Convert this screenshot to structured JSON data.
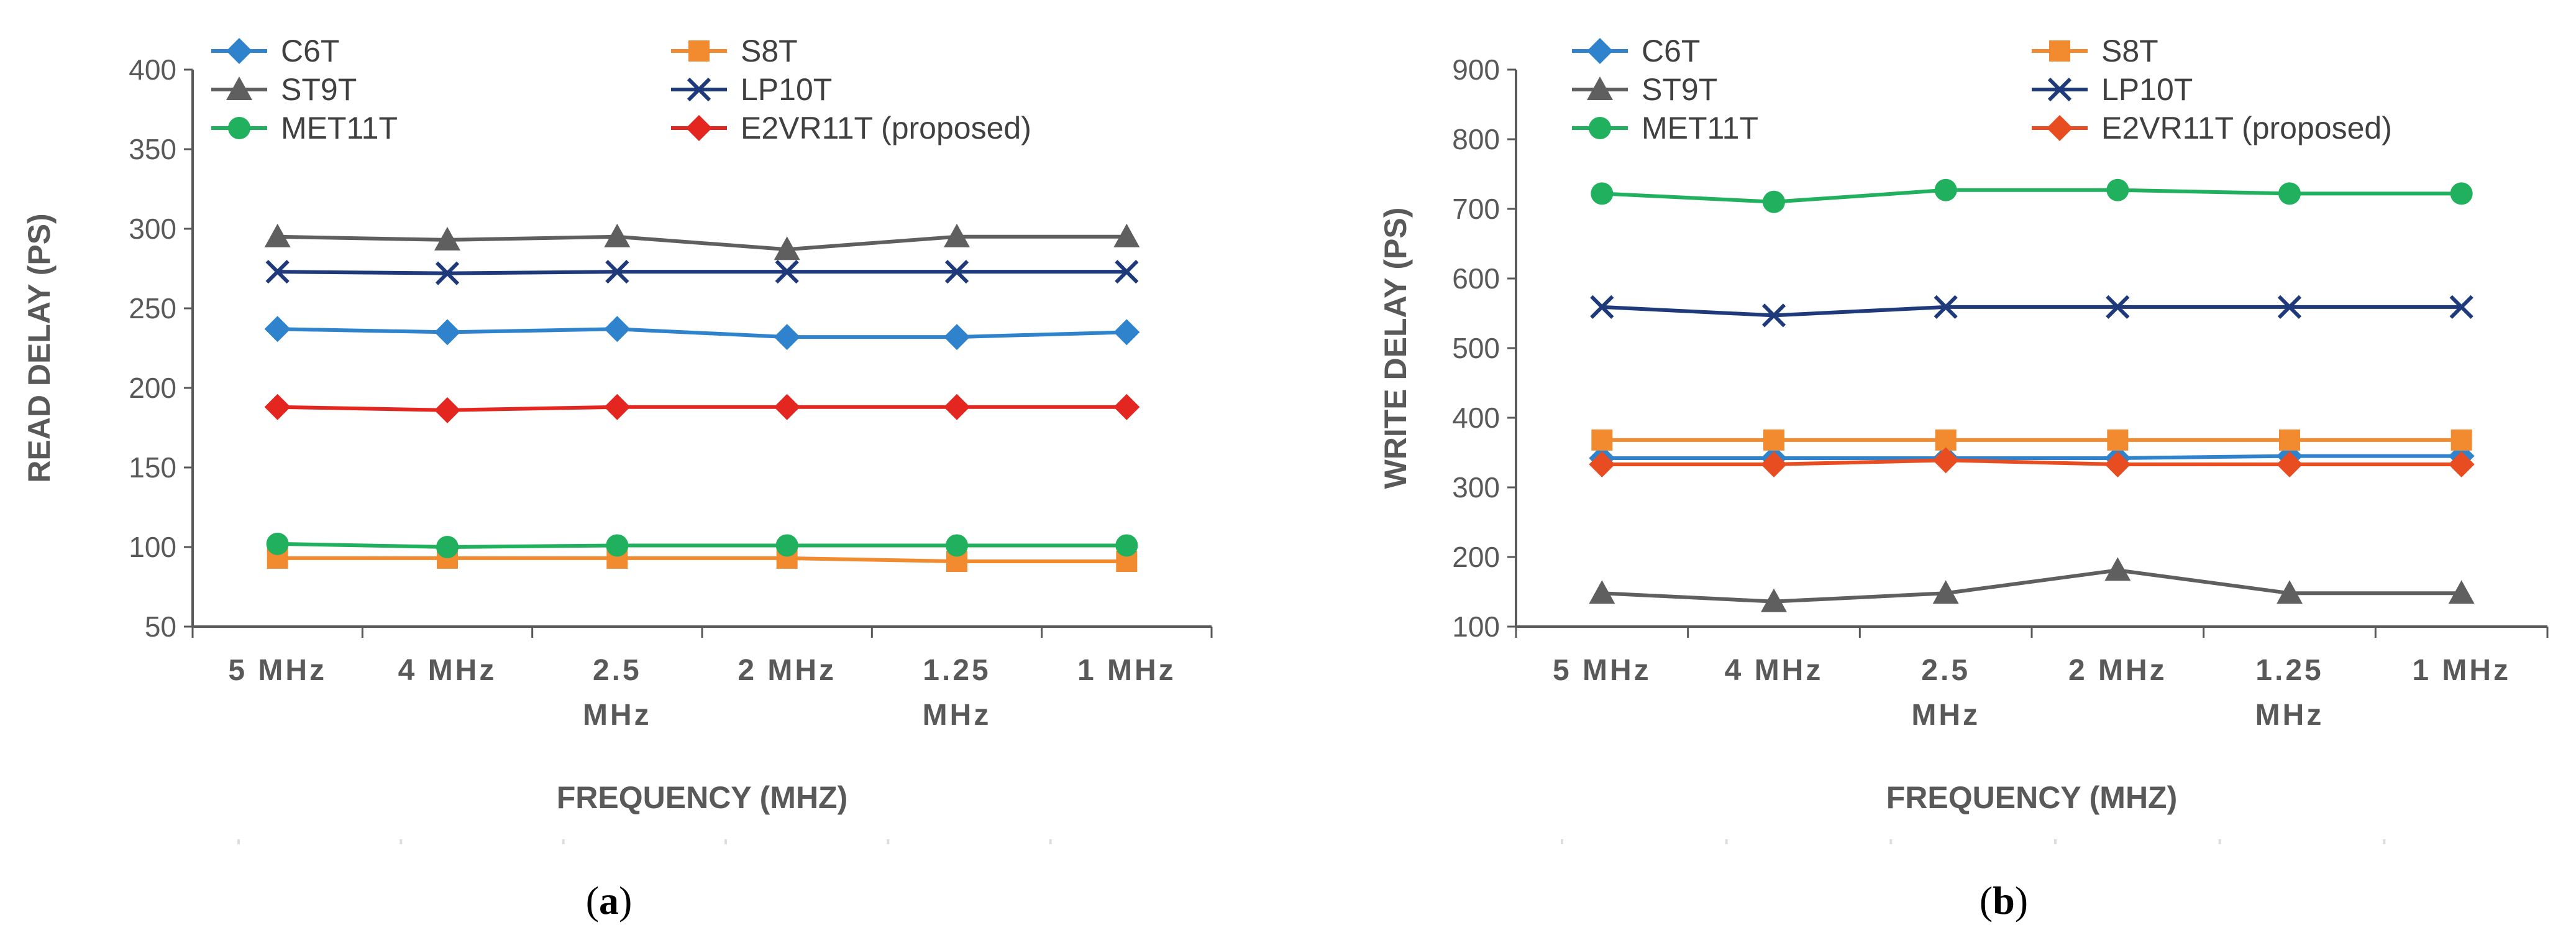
{
  "chart_data": [
    {
      "type": "line",
      "panel_label": "(a)",
      "ylabel": "READ DELAY (PS)",
      "xlabel": "FREQUENCY (MHZ)",
      "ylim": [
        50,
        400
      ],
      "yticks": [
        50,
        100,
        150,
        200,
        250,
        300,
        350,
        400
      ],
      "categories": [
        [
          "5 MHz"
        ],
        [
          "4 MHz"
        ],
        [
          "2.5",
          "MHz"
        ],
        [
          "2 MHz"
        ],
        [
          "1.25",
          "MHz"
        ],
        [
          "1 MHz"
        ]
      ],
      "legend_position": "top",
      "series": [
        {
          "name": "C6T",
          "color": "#2E83CC",
          "marker": "diamond",
          "values": [
            237,
            235,
            237,
            232,
            232,
            235
          ]
        },
        {
          "name": "S8T",
          "color": "#F28A30",
          "marker": "square",
          "values": [
            93,
            93,
            93,
            93,
            91,
            91
          ]
        },
        {
          "name": "ST9T",
          "color": "#5F5F5F",
          "marker": "triangle",
          "values": [
            295,
            293,
            295,
            287,
            295,
            295
          ]
        },
        {
          "name": "LP10T",
          "color": "#1F3A7A",
          "marker": "x",
          "values": [
            273,
            272,
            273,
            273,
            273,
            273
          ]
        },
        {
          "name": "MET11T",
          "color": "#21B05E",
          "marker": "circle",
          "values": [
            102,
            100,
            101,
            101,
            101,
            101
          ]
        },
        {
          "name": "E2VR11T (proposed)",
          "color": "#E3261F",
          "marker": "diamond",
          "values": [
            188,
            186,
            188,
            188,
            188,
            188
          ]
        }
      ]
    },
    {
      "type": "line",
      "panel_label": "(b)",
      "ylabel": "WRITE DELAY (PS)",
      "xlabel": "FREQUENCY (MHZ)",
      "ylim": [
        100,
        900
      ],
      "yticks": [
        100,
        200,
        300,
        400,
        500,
        600,
        700,
        800,
        900
      ],
      "categories": [
        [
          "5 MHz"
        ],
        [
          "4 MHz"
        ],
        [
          "2.5",
          "MHz"
        ],
        [
          "2 MHz"
        ],
        [
          "1.25",
          "MHz"
        ],
        [
          "1 MHz"
        ]
      ],
      "legend_position": "top",
      "series": [
        {
          "name": "C6T",
          "color": "#2E83CC",
          "marker": "diamond",
          "values": [
            342,
            342,
            342,
            342,
            345,
            345
          ]
        },
        {
          "name": "S8T",
          "color": "#F28A30",
          "marker": "square",
          "values": [
            368,
            368,
            368,
            368,
            368,
            368
          ]
        },
        {
          "name": "ST9T",
          "color": "#5F5F5F",
          "marker": "triangle",
          "values": [
            148,
            136,
            148,
            181,
            148,
            148
          ]
        },
        {
          "name": "LP10T",
          "color": "#1F3A7A",
          "marker": "x",
          "values": [
            559,
            547,
            559,
            559,
            559,
            559
          ]
        },
        {
          "name": "MET11T",
          "color": "#21B05E",
          "marker": "circle",
          "values": [
            722,
            710,
            727,
            727,
            722,
            722
          ]
        },
        {
          "name": "E2VR11T (proposed)",
          "color": "#E84D22",
          "marker": "diamond",
          "values": [
            333,
            333,
            339,
            333,
            333,
            333
          ]
        }
      ]
    }
  ]
}
